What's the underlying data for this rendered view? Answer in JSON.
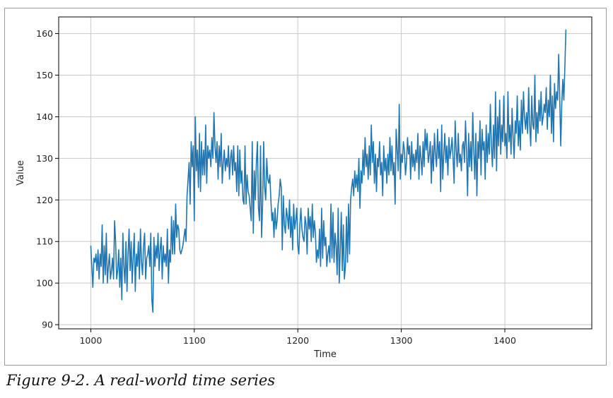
{
  "caption": "Figure 9-2. A real-world time series",
  "chart_data": {
    "type": "line",
    "title": "",
    "xlabel": "Time",
    "ylabel": "Value",
    "xlim": [
      969,
      1484
    ],
    "ylim": [
      89,
      164
    ],
    "x_ticks": [
      1000,
      1100,
      1200,
      1300,
      1400
    ],
    "y_ticks": [
      90,
      100,
      110,
      120,
      130,
      140,
      150,
      160
    ],
    "grid": true,
    "legend": "none",
    "series_color": "#1f77b4",
    "series": [
      {
        "x_start": 1000,
        "x_step": 1,
        "values": [
          109,
          104,
          99,
          106,
          105,
          107,
          103,
          108,
          101,
          107,
          104,
          114,
          100,
          109,
          102,
          112,
          100,
          104,
          107,
          101,
          103,
          106,
          101,
          115,
          110,
          101,
          103,
          108,
          99,
          106,
          96,
          112,
          104,
          100,
          110,
          98,
          107,
          113,
          103,
          110,
          100,
          106,
          112,
          98,
          107,
          104,
          110,
          101,
          113,
          105,
          102,
          109,
          112,
          101,
          106,
          107,
          109,
          104,
          112,
          96,
          93,
          111,
          104,
          109,
          106,
          112,
          103,
          108,
          111,
          101,
          109,
          105,
          107,
          104,
          113,
          100,
          108,
          105,
          116,
          107,
          115,
          107,
          119,
          111,
          114,
          113,
          108,
          107,
          108,
          109,
          111,
          113,
          110,
          121,
          125,
          129,
          119,
          134,
          128,
          133,
          115,
          140,
          127,
          132,
          123,
          136,
          122,
          134,
          126,
          132,
          126,
          138,
          124,
          133,
          130,
          132,
          128,
          135,
          130,
          141,
          133,
          129,
          134,
          125,
          133,
          128,
          136,
          124,
          129,
          132,
          127,
          130,
          128,
          133,
          125,
          130,
          132,
          126,
          133,
          127,
          129,
          122,
          133,
          121,
          132,
          124,
          127,
          120,
          119,
          133,
          119,
          126,
          122,
          121,
          118,
          115,
          134,
          112,
          127,
          120,
          129,
          134,
          118,
          115,
          133,
          111,
          119,
          134,
          123,
          120,
          130,
          125,
          124,
          126,
          120,
          115,
          117,
          111,
          118,
          113,
          115,
          119,
          121,
          125,
          123,
          108,
          121,
          114,
          112,
          118,
          116,
          113,
          120,
          111,
          116,
          108,
          119,
          113,
          115,
          118,
          109,
          107,
          114,
          118,
          113,
          111,
          110,
          116,
          114,
          107,
          118,
          113,
          116,
          110,
          119,
          111,
          115,
          112,
          105,
          108,
          106,
          113,
          104,
          118,
          106,
          115,
          109,
          111,
          104,
          107,
          109,
          105,
          119,
          106,
          117,
          105,
          112,
          109,
          102,
          118,
          100,
          108,
          117,
          103,
          114,
          101,
          104,
          116,
          105,
          119,
          107,
          120,
          123,
          125,
          121,
          127,
          123,
          126,
          122,
          130,
          118,
          127,
          124,
          132,
          126,
          135,
          128,
          131,
          125,
          133,
          126,
          138,
          129,
          134,
          124,
          131,
          122,
          130,
          128,
          134,
          126,
          129,
          121,
          133,
          127,
          130,
          124,
          131,
          126,
          135,
          127,
          133,
          126,
          129,
          119,
          137,
          132,
          127,
          143,
          125,
          131,
          129,
          134,
          132,
          126,
          129,
          135,
          131,
          133,
          125,
          134,
          128,
          131,
          127,
          132,
          129,
          136,
          125,
          133,
          130,
          126,
          134,
          128,
          137,
          132,
          136,
          129,
          131,
          134,
          124,
          133,
          127,
          136,
          131,
          128,
          137,
          130,
          134,
          122,
          138,
          125,
          131,
          136,
          129,
          133,
          126,
          135,
          130,
          132,
          135,
          130,
          124,
          139,
          132,
          128,
          136,
          129,
          131,
          127,
          133,
          134,
          129,
          139,
          132,
          121,
          136,
          128,
          134,
          127,
          141,
          132,
          125,
          136,
          121,
          134,
          130,
          139,
          126,
          137,
          132,
          134,
          125,
          138,
          129,
          136,
          131,
          143,
          133,
          128,
          138,
          130,
          146,
          127,
          140,
          133,
          144,
          131,
          138,
          134,
          145,
          133,
          136,
          130,
          146,
          134,
          138,
          131,
          142,
          135,
          130,
          139,
          136,
          145,
          133,
          139,
          132,
          144,
          136,
          146,
          140,
          137,
          141,
          136,
          147,
          138,
          133,
          145,
          138,
          137,
          150,
          134,
          141,
          136,
          144,
          139,
          146,
          138,
          140,
          143,
          141,
          147,
          137,
          144,
          140,
          150,
          136,
          145,
          134,
          148,
          142,
          146,
          144,
          155,
          145,
          133,
          143,
          149,
          144,
          152,
          161
        ]
      }
    ]
  }
}
